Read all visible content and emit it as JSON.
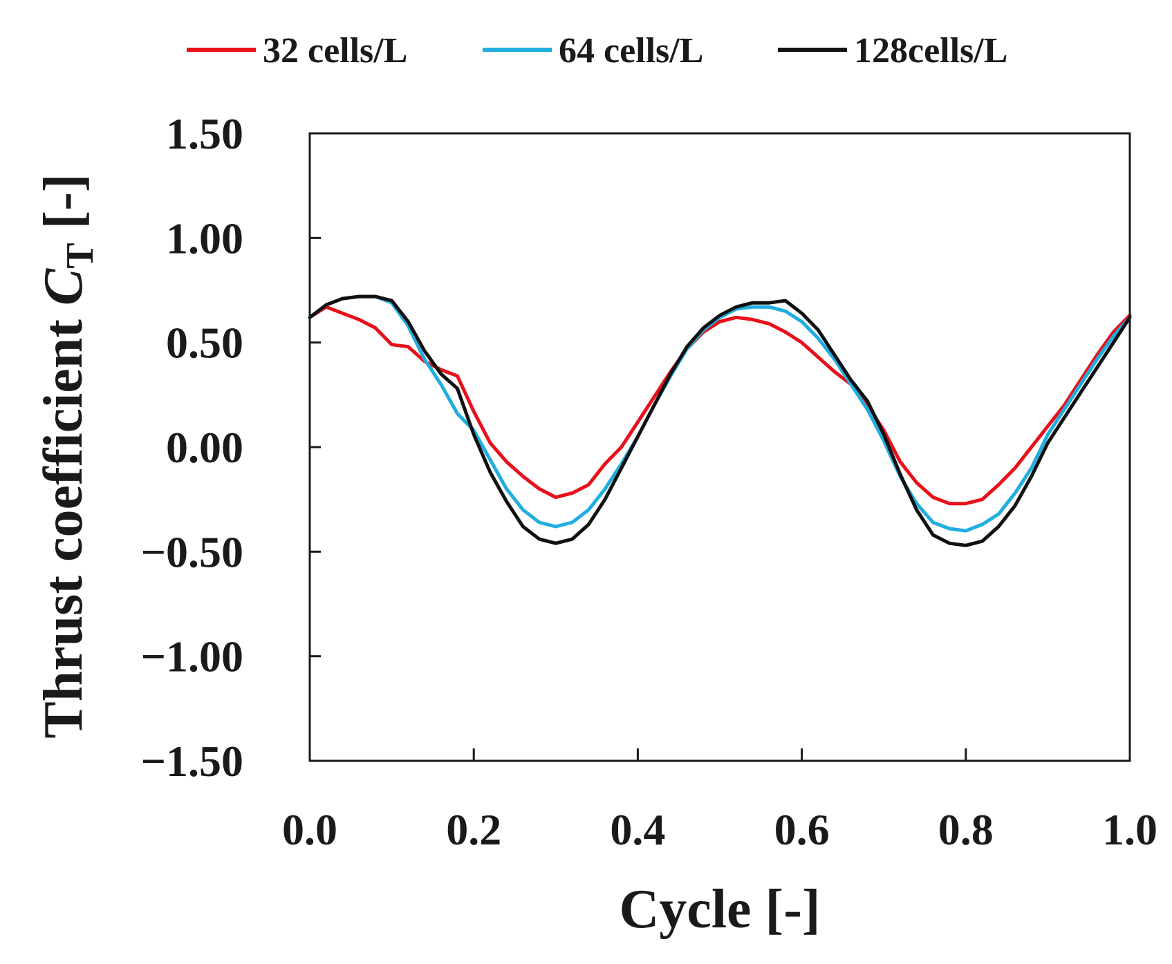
{
  "chart_data": {
    "type": "line",
    "title": "",
    "xlabel": "Cycle [-]",
    "ylabel": {
      "main": "Thrust coefficient ",
      "symbol": "C",
      "subscript": "T",
      "unit": " [-]"
    },
    "xlim": [
      0.0,
      1.0
    ],
    "ylim": [
      -1.5,
      1.5
    ],
    "xticks": [
      0.0,
      0.2,
      0.4,
      0.6,
      0.8,
      1.0
    ],
    "xtick_labels": [
      "0.0",
      "0.2",
      "0.4",
      "0.6",
      "0.8",
      "1.0"
    ],
    "yticks": [
      1.5,
      1.0,
      0.5,
      0.0,
      -0.5,
      -1.0,
      -1.5
    ],
    "ytick_labels": [
      "1.50",
      "1.00",
      "0.50",
      "0.00",
      "−0.50",
      "−1.00",
      "−1.50"
    ],
    "grid": false,
    "legend_position": "top",
    "series": [
      {
        "name": "32 cells/L",
        "color": "#e8101a",
        "x": [
          0.0,
          0.02,
          0.04,
          0.06,
          0.08,
          0.1,
          0.12,
          0.14,
          0.16,
          0.18,
          0.2,
          0.22,
          0.24,
          0.26,
          0.28,
          0.3,
          0.32,
          0.34,
          0.36,
          0.38,
          0.4,
          0.42,
          0.44,
          0.46,
          0.48,
          0.5,
          0.52,
          0.54,
          0.56,
          0.58,
          0.6,
          0.62,
          0.64,
          0.66,
          0.68,
          0.7,
          0.72,
          0.74,
          0.76,
          0.78,
          0.8,
          0.82,
          0.84,
          0.86,
          0.88,
          0.9,
          0.92,
          0.94,
          0.96,
          0.98,
          1.0
        ],
        "y": [
          0.62,
          0.67,
          0.64,
          0.61,
          0.57,
          0.49,
          0.48,
          0.41,
          0.37,
          0.34,
          0.17,
          0.02,
          -0.07,
          -0.14,
          -0.2,
          -0.24,
          -0.22,
          -0.18,
          -0.08,
          0.0,
          0.12,
          0.24,
          0.36,
          0.47,
          0.55,
          0.6,
          0.62,
          0.61,
          0.59,
          0.55,
          0.5,
          0.43,
          0.36,
          0.3,
          0.2,
          0.08,
          -0.07,
          -0.17,
          -0.24,
          -0.27,
          -0.27,
          -0.25,
          -0.18,
          -0.1,
          0.0,
          0.1,
          0.2,
          0.32,
          0.44,
          0.55,
          0.63
        ]
      },
      {
        "name": "64 cells/L",
        "color": "#20aee0",
        "x": [
          0.0,
          0.02,
          0.04,
          0.06,
          0.08,
          0.1,
          0.12,
          0.14,
          0.16,
          0.18,
          0.2,
          0.22,
          0.24,
          0.26,
          0.28,
          0.3,
          0.32,
          0.34,
          0.36,
          0.38,
          0.4,
          0.42,
          0.44,
          0.46,
          0.48,
          0.5,
          0.52,
          0.54,
          0.56,
          0.58,
          0.6,
          0.62,
          0.64,
          0.66,
          0.68,
          0.7,
          0.72,
          0.74,
          0.76,
          0.78,
          0.8,
          0.82,
          0.84,
          0.86,
          0.88,
          0.9,
          0.92,
          0.94,
          0.96,
          0.98,
          1.0
        ],
        "y": [
          0.62,
          0.68,
          0.71,
          0.72,
          0.72,
          0.69,
          0.58,
          0.42,
          0.3,
          0.16,
          0.08,
          -0.06,
          -0.2,
          -0.3,
          -0.36,
          -0.38,
          -0.36,
          -0.3,
          -0.2,
          -0.08,
          0.05,
          0.2,
          0.34,
          0.47,
          0.56,
          0.62,
          0.66,
          0.67,
          0.67,
          0.65,
          0.6,
          0.52,
          0.42,
          0.3,
          0.18,
          0.03,
          -0.14,
          -0.27,
          -0.36,
          -0.39,
          -0.4,
          -0.37,
          -0.32,
          -0.22,
          -0.1,
          0.06,
          0.18,
          0.3,
          0.42,
          0.53,
          0.62
        ]
      },
      {
        "name": "128cells/L",
        "color": "#111111",
        "x": [
          0.0,
          0.02,
          0.04,
          0.06,
          0.08,
          0.1,
          0.12,
          0.14,
          0.16,
          0.18,
          0.2,
          0.22,
          0.24,
          0.26,
          0.28,
          0.3,
          0.32,
          0.34,
          0.36,
          0.38,
          0.4,
          0.42,
          0.44,
          0.46,
          0.48,
          0.5,
          0.52,
          0.54,
          0.56,
          0.58,
          0.6,
          0.62,
          0.64,
          0.66,
          0.68,
          0.7,
          0.72,
          0.74,
          0.76,
          0.78,
          0.8,
          0.82,
          0.84,
          0.86,
          0.88,
          0.9,
          0.92,
          0.94,
          0.96,
          0.98,
          1.0
        ],
        "y": [
          0.62,
          0.68,
          0.71,
          0.72,
          0.72,
          0.7,
          0.6,
          0.46,
          0.35,
          0.28,
          0.06,
          -0.12,
          -0.26,
          -0.38,
          -0.44,
          -0.46,
          -0.44,
          -0.37,
          -0.25,
          -0.1,
          0.05,
          0.2,
          0.35,
          0.48,
          0.57,
          0.63,
          0.67,
          0.69,
          0.69,
          0.7,
          0.64,
          0.56,
          0.44,
          0.32,
          0.22,
          0.06,
          -0.13,
          -0.3,
          -0.42,
          -0.46,
          -0.47,
          -0.45,
          -0.38,
          -0.28,
          -0.14,
          0.02,
          0.14,
          0.26,
          0.38,
          0.5,
          0.62
        ]
      }
    ]
  }
}
